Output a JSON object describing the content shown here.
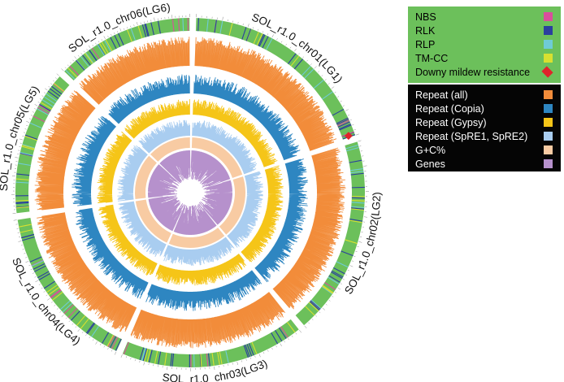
{
  "chromosomes": [
    {
      "name": "SOL_r1.0_chr01(LG1)",
      "size": 27
    },
    {
      "name": "SOL_r1.0_chr02(LG2)",
      "size": 26
    },
    {
      "name": "SOL_r1.0_chr03(LG3)",
      "size": 24
    },
    {
      "name": "SOL_r1.0_chr04(LG4)",
      "size": 22
    },
    {
      "name": "SOL_r1.0_chr05(LG5)",
      "size": 19
    },
    {
      "name": "SOL_r1.0_chr06(LG6)",
      "size": 18
    }
  ],
  "legend_resistance": [
    {
      "label": "NBS",
      "color": "#d94f9c",
      "shape": "square"
    },
    {
      "label": "RLK",
      "color": "#2b3f9e",
      "shape": "square"
    },
    {
      "label": "RLP",
      "color": "#6fcbd6",
      "shape": "square"
    },
    {
      "label": "TM-CC",
      "color": "#d8e030",
      "shape": "square"
    },
    {
      "label": "Downy mildew resistance",
      "color": "#e0242b",
      "shape": "diamond"
    }
  ],
  "legend_tracks": [
    {
      "label": "Repeat (all)",
      "color": "#f28c3a"
    },
    {
      "label": "Repeat (Copia)",
      "color": "#2e86c1"
    },
    {
      "label": "Repeat (Gypsy)",
      "color": "#f5c518"
    },
    {
      "label": "Repeat (SpRE1, SpRE2)",
      "color": "#a9cdf0"
    },
    {
      "label": "G+C%",
      "color": "#f8cba3"
    },
    {
      "label": "Genes",
      "color": "#b691cc"
    }
  ],
  "colors": {
    "ideogram": "#6cc05b",
    "marker_highlight": "#e0242b"
  }
}
